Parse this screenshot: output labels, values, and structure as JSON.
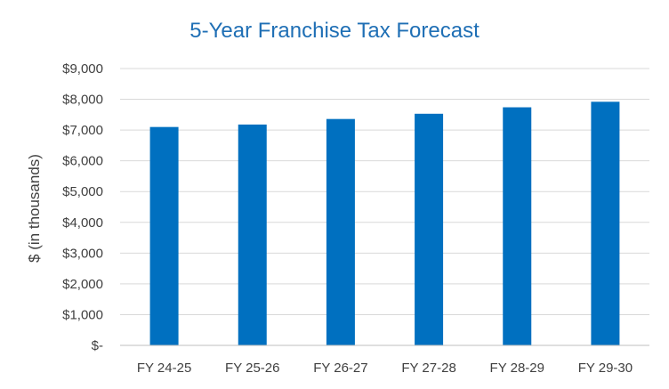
{
  "chart_data": {
    "type": "bar",
    "title": "5-Year Franchise Tax Forecast",
    "xlabel": "",
    "ylabel": "$ (in thousands)",
    "categories": [
      "FY 24-25",
      "FY 25-26",
      "FY 26-27",
      "FY 27-28",
      "FY 28-29",
      "FY 29-30"
    ],
    "values": [
      7100,
      7180,
      7360,
      7530,
      7740,
      7920
    ],
    "ylim": [
      0,
      9000
    ],
    "yticks": [
      0,
      1000,
      2000,
      3000,
      4000,
      5000,
      6000,
      7000,
      8000,
      9000
    ],
    "ytick_labels": [
      "$-",
      "$1,000",
      "$2,000",
      "$3,000",
      "$4,000",
      "$5,000",
      "$6,000",
      "$7,000",
      "$8,000",
      "$9,000"
    ],
    "grid": true,
    "legend": "none",
    "bar_color": "#0070c0"
  }
}
